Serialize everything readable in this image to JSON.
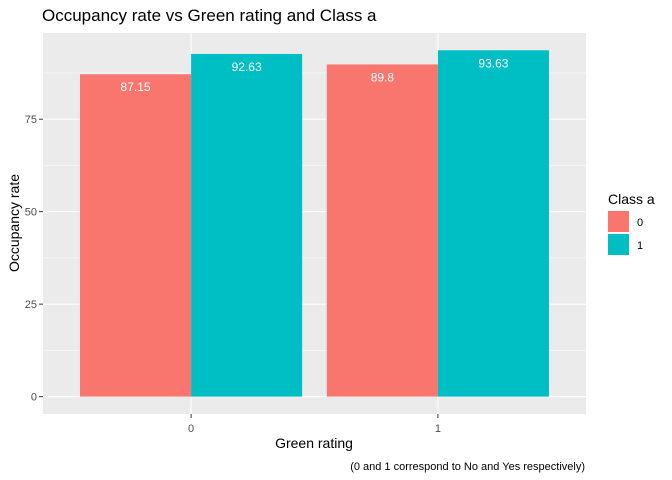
{
  "chart_data": {
    "type": "bar",
    "title": "Occupancy rate vs Green rating and Class a",
    "xlabel": "Green rating",
    "ylabel": "Occupancy rate",
    "caption": "(0 and 1 correspond to No and Yes respectively)",
    "categories": [
      "0",
      "1"
    ],
    "series": [
      {
        "name": "0",
        "color": "#F8766D",
        "values": [
          87.15,
          89.8
        ],
        "labels": [
          "87.15",
          "89.8"
        ]
      },
      {
        "name": "1",
        "color": "#00BFC4",
        "values": [
          92.63,
          93.63
        ],
        "labels": [
          "92.63",
          "93.63"
        ]
      }
    ],
    "yticks": [
      0,
      25,
      50,
      75
    ],
    "ylim": [
      -4.7,
      98.3
    ],
    "grid": true,
    "legend": {
      "title": "Class a",
      "placement": "right"
    }
  }
}
